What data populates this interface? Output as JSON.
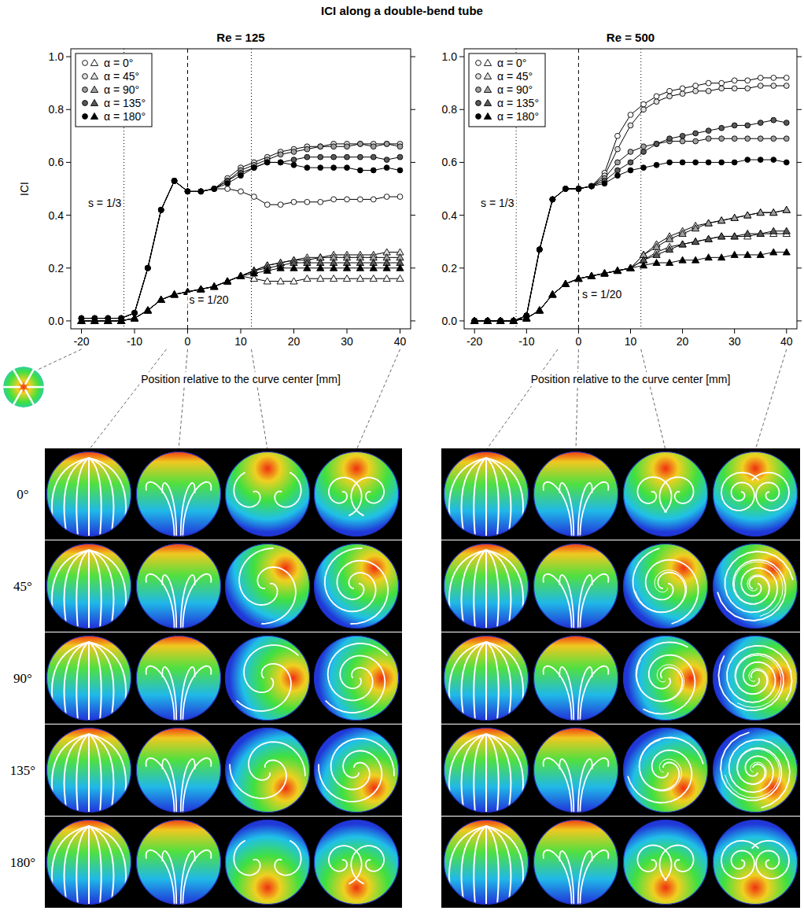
{
  "title": "ICI along a double-bend tube",
  "chart_data": [
    {
      "type": "line",
      "title": "Re = 125",
      "x_label": "Position relative to the curve center [mm]",
      "y_label": "ICI",
      "xlim": [
        -22,
        42
      ],
      "ylim": [
        -0.03,
        1.03
      ],
      "xticks": [
        -20,
        -10,
        0,
        10,
        20,
        30,
        40
      ],
      "yticks": [
        {
          "value": 0,
          "label": "0.0"
        },
        0.2,
        0.4,
        0.6,
        0.8,
        {
          "value": 1,
          "label": "1.0"
        }
      ],
      "legend": "top-left",
      "x": [
        -20,
        -17.5,
        -15,
        -12.5,
        -10,
        -7.5,
        -5,
        -2.5,
        0,
        2.5,
        5,
        7.5,
        10,
        12.5,
        15,
        17.5,
        20,
        22.5,
        25,
        27.5,
        30,
        32.5,
        35,
        37.5,
        40
      ],
      "vlines": [
        {
          "x": -12,
          "line_style": "dotted"
        },
        {
          "x": 0,
          "line_style": "dashed"
        },
        {
          "x": 12,
          "line_style": "dotted"
        }
      ],
      "annotations": [
        {
          "text": "s = 1/3",
          "x": -15.6,
          "y": 0.445
        },
        {
          "text": "s = 1/20",
          "x": 4,
          "y": 0.08
        }
      ],
      "series": [
        {
          "name": "α = 0°",
          "color": "#ffffff",
          "marker": "circle",
          "values": [
            0.01,
            0.01,
            0.01,
            0.01,
            0.03,
            0.2,
            0.42,
            0.53,
            0.49,
            0.49,
            0.5,
            0.5,
            0.49,
            0.47,
            0.44,
            0.44,
            0.45,
            0.45,
            0.45,
            0.46,
            0.46,
            0.46,
            0.46,
            0.47,
            0.47
          ]
        },
        {
          "name": "α = 45°",
          "color": "#e0e0e0",
          "marker": "circle",
          "values": [
            0.01,
            0.01,
            0.01,
            0.01,
            0.03,
            0.2,
            0.42,
            0.53,
            0.49,
            0.49,
            0.5,
            0.54,
            0.58,
            0.6,
            0.62,
            0.64,
            0.65,
            0.66,
            0.66,
            0.67,
            0.67,
            0.67,
            0.67,
            0.67,
            0.67
          ]
        },
        {
          "name": "α = 90°",
          "color": "#a0a0a0",
          "marker": "circle",
          "values": [
            0.01,
            0.01,
            0.01,
            0.01,
            0.03,
            0.2,
            0.42,
            0.53,
            0.49,
            0.49,
            0.5,
            0.53,
            0.57,
            0.59,
            0.61,
            0.63,
            0.64,
            0.65,
            0.66,
            0.66,
            0.66,
            0.67,
            0.66,
            0.67,
            0.66
          ]
        },
        {
          "name": "α = 135°",
          "color": "#585858",
          "marker": "circle",
          "values": [
            0.01,
            0.01,
            0.01,
            0.01,
            0.03,
            0.2,
            0.42,
            0.53,
            0.49,
            0.49,
            0.5,
            0.53,
            0.56,
            0.58,
            0.6,
            0.6,
            0.61,
            0.62,
            0.62,
            0.62,
            0.62,
            0.62,
            0.62,
            0.61,
            0.62
          ]
        },
        {
          "name": "α = 180°",
          "color": "#000000",
          "marker": "circle",
          "values": [
            0.01,
            0.01,
            0.01,
            0.01,
            0.03,
            0.2,
            0.42,
            0.53,
            0.49,
            0.49,
            0.5,
            0.52,
            0.55,
            0.58,
            0.6,
            0.6,
            0.59,
            0.58,
            0.58,
            0.58,
            0.58,
            0.57,
            0.57,
            0.58,
            0.57
          ]
        },
        {
          "name": "α = 0°",
          "color": "#ffffff",
          "marker": "triangle",
          "values": [
            0,
            0,
            0,
            0,
            0.01,
            0.04,
            0.08,
            0.1,
            0.11,
            0.12,
            0.13,
            0.15,
            0.17,
            0.16,
            0.15,
            0.15,
            0.15,
            0.16,
            0.16,
            0.16,
            0.16,
            0.16,
            0.16,
            0.16,
            0.16
          ]
        },
        {
          "name": "α = 45°",
          "color": "#e0e0e0",
          "marker": "triangle",
          "values": [
            0,
            0,
            0,
            0,
            0.01,
            0.04,
            0.08,
            0.1,
            0.11,
            0.12,
            0.13,
            0.15,
            0.17,
            0.19,
            0.21,
            0.22,
            0.23,
            0.24,
            0.24,
            0.25,
            0.25,
            0.25,
            0.25,
            0.26,
            0.26
          ]
        },
        {
          "name": "α = 90°",
          "color": "#a0a0a0",
          "marker": "triangle",
          "values": [
            0,
            0,
            0,
            0,
            0.01,
            0.04,
            0.08,
            0.1,
            0.11,
            0.12,
            0.13,
            0.15,
            0.17,
            0.19,
            0.21,
            0.22,
            0.23,
            0.23,
            0.24,
            0.24,
            0.24,
            0.24,
            0.24,
            0.24,
            0.24
          ]
        },
        {
          "name": "α = 135°",
          "color": "#585858",
          "marker": "triangle",
          "values": [
            0,
            0,
            0,
            0,
            0.01,
            0.04,
            0.08,
            0.1,
            0.11,
            0.12,
            0.13,
            0.15,
            0.17,
            0.19,
            0.2,
            0.21,
            0.22,
            0.22,
            0.22,
            0.22,
            0.22,
            0.22,
            0.22,
            0.22,
            0.22
          ]
        },
        {
          "name": "α = 180°",
          "color": "#000000",
          "marker": "triangle",
          "values": [
            0,
            0,
            0,
            0,
            0.01,
            0.04,
            0.08,
            0.1,
            0.11,
            0.12,
            0.13,
            0.15,
            0.17,
            0.18,
            0.19,
            0.2,
            0.2,
            0.2,
            0.2,
            0.2,
            0.2,
            0.2,
            0.2,
            0.2,
            0.2
          ]
        }
      ]
    },
    {
      "type": "line",
      "title": "Re = 500",
      "x_label": "Position relative to the curve center [mm]",
      "xlim": [
        -22,
        42
      ],
      "ylim": [
        -0.03,
        1.03
      ],
      "xticks": [
        -20,
        -10,
        0,
        10,
        20,
        30,
        40
      ],
      "yticks": [
        {
          "value": 0,
          "label": "0.0"
        },
        0.2,
        0.4,
        0.6,
        0.8,
        {
          "value": 1,
          "label": "1.0"
        }
      ],
      "legend": "top-left",
      "x": [
        -20,
        -17.5,
        -15,
        -12.5,
        -10,
        -7.5,
        -5,
        -2.5,
        0,
        2.5,
        5,
        7.5,
        10,
        12.5,
        15,
        17.5,
        20,
        22.5,
        25,
        27.5,
        30,
        32.5,
        35,
        37.5,
        40
      ],
      "vlines": [
        {
          "x": -12,
          "line_style": "dotted"
        },
        {
          "x": 0,
          "line_style": "dashed"
        },
        {
          "x": 12,
          "line_style": "dotted"
        }
      ],
      "annotations": [
        {
          "text": "s = 1/3",
          "x": -15.6,
          "y": 0.445
        },
        {
          "text": "s = 1/20",
          "x": 4.5,
          "y": 0.1
        }
      ],
      "series": [
        {
          "name": "α = 0°",
          "color": "#ffffff",
          "marker": "circle",
          "values": [
            0,
            0,
            0,
            0,
            0.02,
            0.27,
            0.46,
            0.5,
            0.5,
            0.51,
            0.56,
            0.7,
            0.78,
            0.82,
            0.85,
            0.87,
            0.88,
            0.89,
            0.9,
            0.9,
            0.91,
            0.91,
            0.92,
            0.92,
            0.92
          ]
        },
        {
          "name": "α = 45°",
          "color": "#e0e0e0",
          "marker": "circle",
          "values": [
            0,
            0,
            0,
            0,
            0.02,
            0.27,
            0.46,
            0.5,
            0.5,
            0.51,
            0.55,
            0.65,
            0.74,
            0.8,
            0.83,
            0.85,
            0.86,
            0.87,
            0.87,
            0.88,
            0.88,
            0.88,
            0.89,
            0.89,
            0.89
          ]
        },
        {
          "name": "α = 90°",
          "color": "#a0a0a0",
          "marker": "circle",
          "values": [
            0,
            0,
            0,
            0,
            0.02,
            0.27,
            0.46,
            0.5,
            0.5,
            0.51,
            0.54,
            0.6,
            0.64,
            0.66,
            0.67,
            0.68,
            0.68,
            0.68,
            0.69,
            0.69,
            0.69,
            0.69,
            0.69,
            0.69,
            0.69
          ]
        },
        {
          "name": "α = 135°",
          "color": "#585858",
          "marker": "circle",
          "values": [
            0,
            0,
            0,
            0,
            0.02,
            0.27,
            0.46,
            0.5,
            0.5,
            0.51,
            0.53,
            0.57,
            0.6,
            0.64,
            0.67,
            0.69,
            0.7,
            0.71,
            0.72,
            0.73,
            0.74,
            0.74,
            0.75,
            0.76,
            0.75
          ]
        },
        {
          "name": "α = 180°",
          "color": "#000000",
          "marker": "circle",
          "values": [
            0,
            0,
            0,
            0,
            0.02,
            0.27,
            0.46,
            0.5,
            0.5,
            0.51,
            0.52,
            0.55,
            0.57,
            0.58,
            0.59,
            0.6,
            0.6,
            0.6,
            0.6,
            0.6,
            0.6,
            0.61,
            0.61,
            0.61,
            0.6
          ]
        },
        {
          "name": "α = 0°",
          "color": "#ffffff",
          "marker": "triangle",
          "values": [
            0,
            0,
            0,
            0,
            0.01,
            0.04,
            0.1,
            0.14,
            0.16,
            0.17,
            0.18,
            0.19,
            0.2,
            0.23,
            0.26,
            0.28,
            0.29,
            0.3,
            0.31,
            0.32,
            0.32,
            0.32,
            0.33,
            0.33,
            0.33
          ]
        },
        {
          "name": "α = 45°",
          "color": "#e0e0e0",
          "marker": "triangle",
          "values": [
            0,
            0,
            0,
            0,
            0.01,
            0.04,
            0.1,
            0.14,
            0.16,
            0.17,
            0.18,
            0.19,
            0.2,
            0.25,
            0.29,
            0.32,
            0.34,
            0.36,
            0.37,
            0.38,
            0.39,
            0.4,
            0.41,
            0.41,
            0.42
          ]
        },
        {
          "name": "α = 90°",
          "color": "#a0a0a0",
          "marker": "triangle",
          "values": [
            0,
            0,
            0,
            0,
            0.01,
            0.04,
            0.1,
            0.14,
            0.16,
            0.17,
            0.18,
            0.19,
            0.2,
            0.25,
            0.28,
            0.31,
            0.33,
            0.35,
            0.37,
            0.38,
            0.39,
            0.4,
            0.41,
            0.41,
            0.42
          ]
        },
        {
          "name": "α = 135°",
          "color": "#585858",
          "marker": "triangle",
          "values": [
            0,
            0,
            0,
            0,
            0.01,
            0.04,
            0.1,
            0.14,
            0.16,
            0.17,
            0.18,
            0.19,
            0.2,
            0.23,
            0.25,
            0.27,
            0.29,
            0.3,
            0.31,
            0.32,
            0.32,
            0.33,
            0.33,
            0.34,
            0.34
          ]
        },
        {
          "name": "α = 180°",
          "color": "#000000",
          "marker": "triangle",
          "values": [
            0,
            0,
            0,
            0,
            0.01,
            0.04,
            0.1,
            0.14,
            0.16,
            0.17,
            0.18,
            0.19,
            0.2,
            0.21,
            0.22,
            0.22,
            0.23,
            0.23,
            0.24,
            0.24,
            0.25,
            0.25,
            0.25,
            0.26,
            0.26
          ]
        }
      ]
    }
  ],
  "images": {
    "inset_position": -20,
    "column_positions": [
      -4,
      0,
      12,
      40
    ],
    "row_labels": [
      "0°",
      "45°",
      "90°",
      "135°",
      "180°"
    ]
  }
}
